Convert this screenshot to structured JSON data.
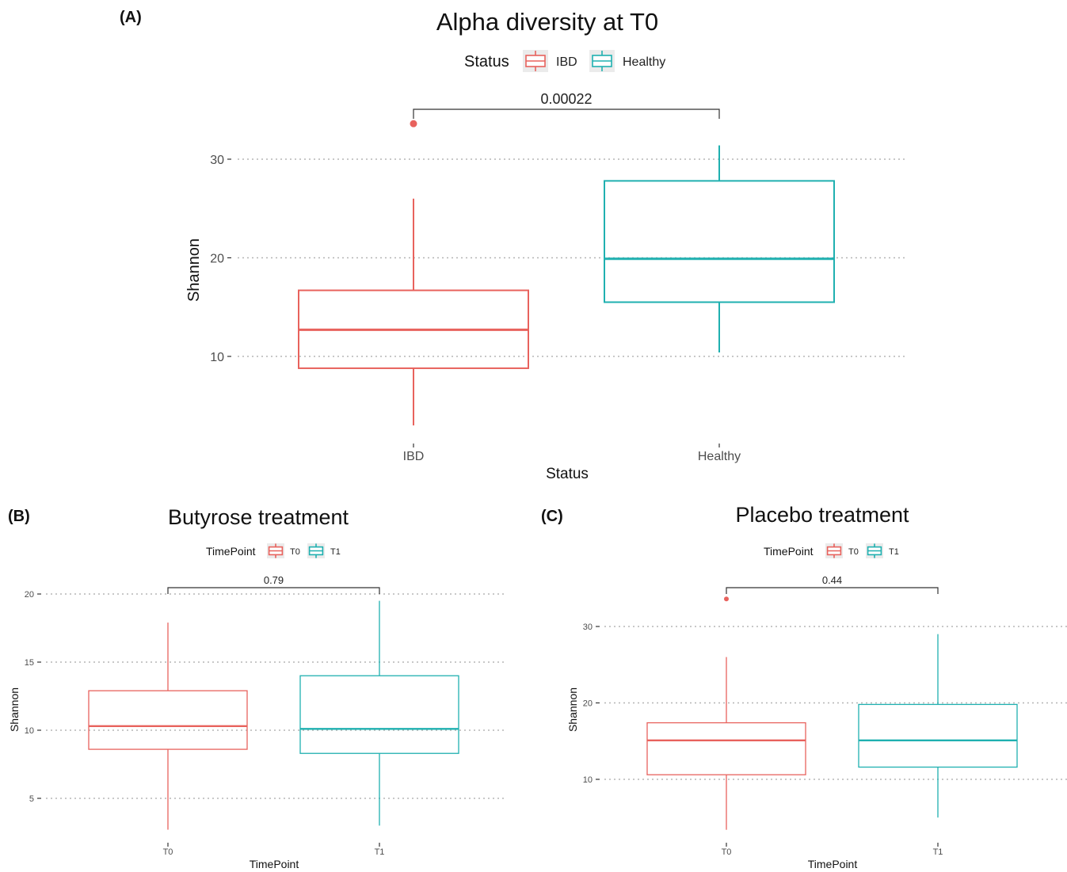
{
  "colors": {
    "IBD_T0": "#e8625d",
    "Healthy_T1": "#1fb0b0",
    "grid": "#b5b5b5",
    "axis": "#333333"
  },
  "chart_data": [
    {
      "id": "A",
      "panel_label": "(A)",
      "type": "box",
      "title": "Alpha diversity at T0",
      "xlabel": "Status",
      "ylabel": "Shannon",
      "legend_title": "Status",
      "legend_position": "top",
      "categories": [
        "IBD",
        "Healthy"
      ],
      "yticks": [
        10,
        20,
        30
      ],
      "ylim": [
        1.5,
        35.5
      ],
      "grid": "horizontal dotted",
      "series": [
        {
          "name": "IBD",
          "whisker_low": 3,
          "q1": 8.8,
          "median": 12.7,
          "q3": 16.7,
          "whisker_high": 26,
          "outliers": [
            33.6
          ]
        },
        {
          "name": "Healthy",
          "whisker_low": 10.4,
          "q1": 15.5,
          "median": 19.9,
          "q3": 27.8,
          "whisker_high": 31.4,
          "outliers": []
        }
      ],
      "comparison": {
        "label": "0.00022"
      }
    },
    {
      "id": "B",
      "panel_label": "(B)",
      "type": "box",
      "title": "Butyrose treatment",
      "xlabel": "TimePoint",
      "ylabel": "Shannon",
      "legend_title": "TimePoint",
      "legend_position": "top",
      "categories": [
        "T0",
        "T1"
      ],
      "yticks": [
        5,
        10,
        15,
        20
      ],
      "ylim": [
        2,
        21
      ],
      "grid": "horizontal dotted",
      "series": [
        {
          "name": "T0",
          "whisker_low": 2.7,
          "q1": 8.6,
          "median": 10.3,
          "q3": 12.9,
          "whisker_high": 17.9,
          "outliers": []
        },
        {
          "name": "T1",
          "whisker_low": 3.0,
          "q1": 8.3,
          "median": 10.1,
          "q3": 14.0,
          "whisker_high": 19.5,
          "outliers": []
        }
      ],
      "comparison": {
        "label": "0.79"
      }
    },
    {
      "id": "C",
      "panel_label": "(C)",
      "type": "box",
      "title": "Placebo treatment",
      "xlabel": "TimePoint",
      "ylabel": "Shannon",
      "legend_title": "TimePoint",
      "legend_position": "top",
      "categories": [
        "T0",
        "T1"
      ],
      "yticks": [
        10,
        20,
        30
      ],
      "ylim": [
        1.5,
        36
      ],
      "grid": "horizontal dotted",
      "series": [
        {
          "name": "T0",
          "whisker_low": 3.4,
          "q1": 10.6,
          "median": 15.1,
          "q3": 17.4,
          "whisker_high": 26,
          "outliers": [
            33.6
          ]
        },
        {
          "name": "T1",
          "whisker_low": 5.0,
          "q1": 11.6,
          "median": 15.1,
          "q3": 19.8,
          "whisker_high": 29,
          "outliers": []
        }
      ],
      "comparison": {
        "label": "0.44"
      }
    }
  ]
}
